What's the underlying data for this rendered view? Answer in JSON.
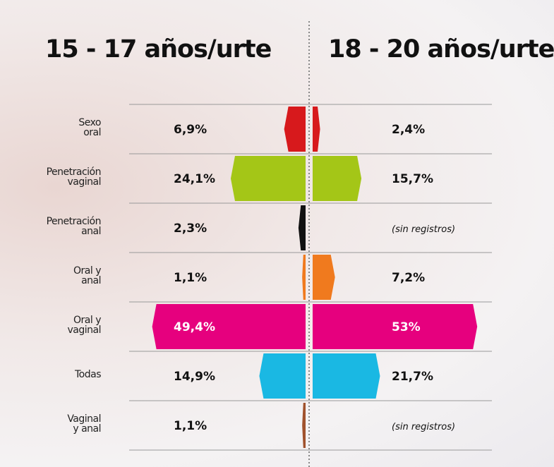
{
  "chart_data": {
    "type": "butterfly-bar",
    "categories": [
      "Sexo\noral",
      "Penetración\nvaginal",
      "Penetración\nanal",
      "Oral y\nanal",
      "Oral y\nvaginal",
      "Todas",
      "Vaginal\ny anal"
    ],
    "colors": [
      "#d7191c",
      "#a4c617",
      "#111111",
      "#f07a1e",
      "#e6007e",
      "#1ab8e3",
      "#a0522d"
    ],
    "series": [
      {
        "name": "15 - 17 años/urte",
        "side": "left",
        "values": [
          6.9,
          24.1,
          2.3,
          1.1,
          49.4,
          14.9,
          1.1
        ],
        "value_labels": [
          "6,9%",
          "24,1%",
          "2,3%",
          "1,1%",
          "49,4%",
          "14,9%",
          "1,1%"
        ]
      },
      {
        "name": "18 - 20 años/urte",
        "side": "right",
        "values": [
          2.4,
          15.7,
          null,
          7.2,
          53,
          21.7,
          null
        ],
        "value_labels": [
          "2,4%",
          "15,7%",
          "(sin registros)",
          "7,2%",
          "53%",
          "21,7%",
          "(sin registros)"
        ]
      }
    ]
  }
}
